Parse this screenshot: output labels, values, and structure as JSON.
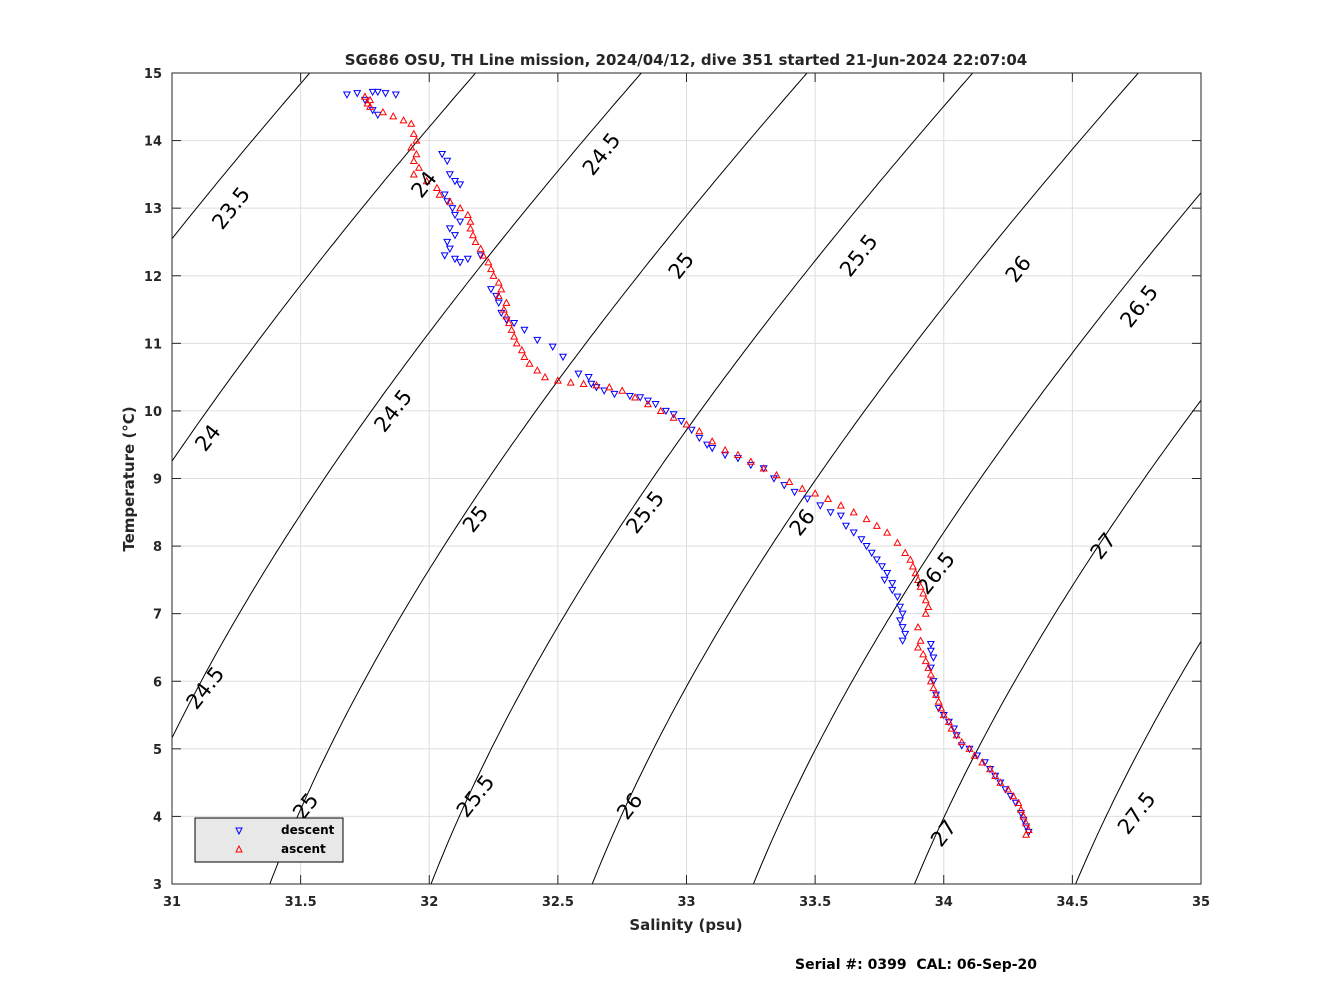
{
  "chart_data": {
    "type": "scatter",
    "title": "SG686 OSU, TH Line mission, 2024/04/12, dive 351 started 21-Jun-2024 22:07:04",
    "xlabel": "Salinity (psu)",
    "ylabel": "Temperature (°C)",
    "xlim": [
      31,
      35
    ],
    "ylim": [
      3,
      15
    ],
    "xticks": [
      31,
      31.5,
      32,
      32.5,
      33,
      33.5,
      34,
      34.5,
      35
    ],
    "xtick_labels": [
      "31",
      "31.5",
      "32",
      "32.5",
      "33",
      "33.5",
      "34",
      "34.5",
      "35"
    ],
    "yticks": [
      3,
      4,
      5,
      6,
      7,
      8,
      9,
      10,
      11,
      12,
      13,
      14,
      15
    ],
    "ytick_labels": [
      "3",
      "4",
      "5",
      "6",
      "7",
      "8",
      "9",
      "10",
      "11",
      "12",
      "13",
      "14",
      "15"
    ],
    "grid": true,
    "legend_position": "bottom-left",
    "density_contours": {
      "levels": [
        23.5,
        24,
        24.5,
        25,
        25.5,
        26,
        26.5,
        27,
        27.5
      ],
      "color": "#000000",
      "labels": [
        {
          "text": "23.5",
          "x": 31.23,
          "y": 13.0
        },
        {
          "text": "24",
          "x": 31.14,
          "y": 9.6
        },
        {
          "text": "24.5",
          "x": 31.13,
          "y": 5.9
        },
        {
          "text": "24",
          "x": 31.98,
          "y": 13.35
        },
        {
          "text": "24.5",
          "x": 31.86,
          "y": 10.0
        },
        {
          "text": "25",
          "x": 31.52,
          "y": 4.15
        },
        {
          "text": "24.5",
          "x": 32.67,
          "y": 13.8
        },
        {
          "text": "25",
          "x": 32.18,
          "y": 8.4
        },
        {
          "text": "25.5",
          "x": 32.18,
          "y": 4.3
        },
        {
          "text": "25",
          "x": 32.98,
          "y": 12.15
        },
        {
          "text": "25.5",
          "x": 32.84,
          "y": 8.5
        },
        {
          "text": "26",
          "x": 32.78,
          "y": 4.15
        },
        {
          "text": "25.5",
          "x": 33.67,
          "y": 12.3
        },
        {
          "text": "26",
          "x": 33.45,
          "y": 8.35
        },
        {
          "text": "27",
          "x": 34.0,
          "y": 3.75
        },
        {
          "text": "26",
          "x": 34.29,
          "y": 12.1
        },
        {
          "text": "26.5",
          "x": 33.97,
          "y": 7.6
        },
        {
          "text": "27.5",
          "x": 34.75,
          "y": 4.05
        },
        {
          "text": "26.5",
          "x": 34.76,
          "y": 11.55
        },
        {
          "text": "27",
          "x": 34.62,
          "y": 8.0
        }
      ]
    },
    "series": [
      {
        "name": "descent",
        "color": "#0000ff",
        "marker": "triangle-down",
        "points": [
          [
            31.68,
            14.68
          ],
          [
            31.72,
            14.7
          ],
          [
            31.78,
            14.72
          ],
          [
            31.8,
            14.72
          ],
          [
            31.83,
            14.7
          ],
          [
            31.87,
            14.68
          ],
          [
            31.75,
            14.6
          ],
          [
            31.78,
            14.45
          ],
          [
            31.8,
            14.38
          ],
          [
            32.05,
            13.8
          ],
          [
            32.07,
            13.7
          ],
          [
            32.08,
            13.5
          ],
          [
            32.1,
            13.4
          ],
          [
            32.12,
            13.35
          ],
          [
            32.06,
            13.2
          ],
          [
            32.07,
            13.1
          ],
          [
            32.09,
            13.0
          ],
          [
            32.1,
            12.9
          ],
          [
            32.12,
            12.8
          ],
          [
            32.08,
            12.7
          ],
          [
            32.1,
            12.6
          ],
          [
            32.07,
            12.5
          ],
          [
            32.08,
            12.4
          ],
          [
            32.06,
            12.3
          ],
          [
            32.1,
            12.25
          ],
          [
            32.12,
            12.2
          ],
          [
            32.15,
            12.25
          ],
          [
            32.2,
            12.3
          ],
          [
            32.24,
            11.8
          ],
          [
            32.26,
            11.7
          ],
          [
            32.27,
            11.6
          ],
          [
            32.28,
            11.45
          ],
          [
            32.3,
            11.35
          ],
          [
            32.33,
            11.3
          ],
          [
            32.37,
            11.2
          ],
          [
            32.42,
            11.05
          ],
          [
            32.48,
            10.95
          ],
          [
            32.52,
            10.8
          ],
          [
            32.58,
            10.55
          ],
          [
            32.62,
            10.5
          ],
          [
            32.63,
            10.4
          ],
          [
            32.65,
            10.35
          ],
          [
            32.68,
            10.3
          ],
          [
            32.72,
            10.25
          ],
          [
            32.78,
            10.22
          ],
          [
            32.82,
            10.2
          ],
          [
            32.85,
            10.15
          ],
          [
            32.88,
            10.1
          ],
          [
            32.92,
            10.0
          ],
          [
            32.95,
            9.95
          ],
          [
            32.98,
            9.85
          ],
          [
            33.02,
            9.72
          ],
          [
            33.05,
            9.6
          ],
          [
            33.08,
            9.5
          ],
          [
            33.1,
            9.45
          ],
          [
            33.15,
            9.35
          ],
          [
            33.2,
            9.3
          ],
          [
            33.25,
            9.2
          ],
          [
            33.3,
            9.15
          ],
          [
            33.34,
            9.0
          ],
          [
            33.38,
            8.9
          ],
          [
            33.42,
            8.8
          ],
          [
            33.47,
            8.7
          ],
          [
            33.52,
            8.6
          ],
          [
            33.56,
            8.5
          ],
          [
            33.6,
            8.45
          ],
          [
            33.62,
            8.3
          ],
          [
            33.65,
            8.2
          ],
          [
            33.68,
            8.1
          ],
          [
            33.7,
            8.0
          ],
          [
            33.72,
            7.9
          ],
          [
            33.74,
            7.8
          ],
          [
            33.76,
            7.7
          ],
          [
            33.78,
            7.6
          ],
          [
            33.77,
            7.5
          ],
          [
            33.8,
            7.45
          ],
          [
            33.8,
            7.35
          ],
          [
            33.82,
            7.25
          ],
          [
            33.83,
            7.1
          ],
          [
            33.84,
            7.0
          ],
          [
            33.83,
            6.9
          ],
          [
            33.84,
            6.8
          ],
          [
            33.85,
            6.7
          ],
          [
            33.84,
            6.6
          ],
          [
            33.95,
            6.55
          ],
          [
            33.95,
            6.45
          ],
          [
            33.96,
            6.35
          ],
          [
            33.95,
            6.2
          ],
          [
            33.96,
            6.0
          ],
          [
            33.97,
            5.8
          ],
          [
            33.98,
            5.6
          ],
          [
            34.0,
            5.5
          ],
          [
            34.02,
            5.4
          ],
          [
            34.04,
            5.3
          ],
          [
            34.05,
            5.2
          ],
          [
            34.07,
            5.05
          ],
          [
            34.1,
            5.0
          ],
          [
            34.13,
            4.9
          ],
          [
            34.16,
            4.8
          ],
          [
            34.18,
            4.7
          ],
          [
            34.2,
            4.6
          ],
          [
            34.22,
            4.5
          ],
          [
            34.24,
            4.4
          ],
          [
            34.26,
            4.3
          ],
          [
            34.28,
            4.2
          ],
          [
            34.3,
            4.05
          ],
          [
            34.31,
            3.95
          ],
          [
            34.32,
            3.85
          ],
          [
            34.33,
            3.77
          ]
        ]
      },
      {
        "name": "ascent",
        "color": "#ff0000",
        "marker": "triangle-up",
        "points": [
          [
            31.75,
            14.65
          ],
          [
            31.77,
            14.6
          ],
          [
            31.76,
            14.55
          ],
          [
            31.77,
            14.5
          ],
          [
            31.82,
            14.42
          ],
          [
            31.86,
            14.36
          ],
          [
            31.9,
            14.3
          ],
          [
            31.93,
            14.25
          ],
          [
            31.94,
            14.1
          ],
          [
            31.95,
            14.0
          ],
          [
            31.93,
            13.9
          ],
          [
            31.95,
            13.8
          ],
          [
            31.94,
            13.7
          ],
          [
            31.96,
            13.6
          ],
          [
            31.94,
            13.5
          ],
          [
            31.99,
            13.4
          ],
          [
            32.03,
            13.3
          ],
          [
            32.04,
            13.2
          ],
          [
            32.08,
            13.1
          ],
          [
            32.12,
            13.0
          ],
          [
            32.15,
            12.9
          ],
          [
            32.16,
            12.8
          ],
          [
            32.16,
            12.7
          ],
          [
            32.17,
            12.6
          ],
          [
            32.18,
            12.5
          ],
          [
            32.2,
            12.4
          ],
          [
            32.21,
            12.3
          ],
          [
            32.23,
            12.2
          ],
          [
            32.24,
            12.1
          ],
          [
            32.25,
            12.0
          ],
          [
            32.27,
            11.9
          ],
          [
            32.28,
            11.8
          ],
          [
            32.27,
            11.7
          ],
          [
            32.3,
            11.6
          ],
          [
            32.29,
            11.5
          ],
          [
            32.3,
            11.4
          ],
          [
            32.31,
            11.3
          ],
          [
            32.32,
            11.2
          ],
          [
            32.33,
            11.1
          ],
          [
            32.34,
            11.0
          ],
          [
            32.36,
            10.9
          ],
          [
            32.37,
            10.8
          ],
          [
            32.39,
            10.7
          ],
          [
            32.42,
            10.6
          ],
          [
            32.45,
            10.5
          ],
          [
            32.5,
            10.45
          ],
          [
            32.55,
            10.42
          ],
          [
            32.6,
            10.4
          ],
          [
            32.65,
            10.38
          ],
          [
            32.7,
            10.35
          ],
          [
            32.75,
            10.3
          ],
          [
            32.8,
            10.2
          ],
          [
            32.85,
            10.1
          ],
          [
            32.9,
            10.0
          ],
          [
            32.95,
            9.9
          ],
          [
            33.0,
            9.8
          ],
          [
            33.05,
            9.7
          ],
          [
            33.1,
            9.55
          ],
          [
            33.15,
            9.42
          ],
          [
            33.2,
            9.35
          ],
          [
            33.25,
            9.25
          ],
          [
            33.3,
            9.15
          ],
          [
            33.35,
            9.05
          ],
          [
            33.4,
            8.95
          ],
          [
            33.45,
            8.85
          ],
          [
            33.5,
            8.78
          ],
          [
            33.55,
            8.7
          ],
          [
            33.6,
            8.6
          ],
          [
            33.65,
            8.5
          ],
          [
            33.7,
            8.4
          ],
          [
            33.74,
            8.3
          ],
          [
            33.78,
            8.2
          ],
          [
            33.82,
            8.05
          ],
          [
            33.85,
            7.9
          ],
          [
            33.87,
            7.8
          ],
          [
            33.88,
            7.7
          ],
          [
            33.89,
            7.6
          ],
          [
            33.9,
            7.5
          ],
          [
            33.91,
            7.4
          ],
          [
            33.92,
            7.3
          ],
          [
            33.93,
            7.2
          ],
          [
            33.94,
            7.1
          ],
          [
            33.93,
            7.0
          ],
          [
            33.9,
            6.8
          ],
          [
            33.91,
            6.6
          ],
          [
            33.9,
            6.5
          ],
          [
            33.92,
            6.4
          ],
          [
            33.93,
            6.3
          ],
          [
            33.94,
            6.2
          ],
          [
            33.95,
            6.1
          ],
          [
            33.95,
            6.0
          ],
          [
            33.96,
            5.9
          ],
          [
            33.97,
            5.8
          ],
          [
            33.98,
            5.7
          ],
          [
            33.99,
            5.6
          ],
          [
            34.0,
            5.5
          ],
          [
            34.02,
            5.4
          ],
          [
            34.03,
            5.3
          ],
          [
            34.05,
            5.2
          ],
          [
            34.07,
            5.1
          ],
          [
            34.1,
            5.0
          ],
          [
            34.12,
            4.9
          ],
          [
            34.15,
            4.8
          ],
          [
            34.18,
            4.7
          ],
          [
            34.2,
            4.6
          ],
          [
            34.22,
            4.5
          ],
          [
            34.25,
            4.4
          ],
          [
            34.27,
            4.3
          ],
          [
            34.29,
            4.2
          ],
          [
            34.3,
            4.1
          ],
          [
            34.31,
            4.0
          ],
          [
            34.32,
            3.9
          ],
          [
            34.33,
            3.8
          ],
          [
            34.32,
            3.73
          ]
        ]
      }
    ]
  },
  "footer": {
    "text": "Serial #: 0399  CAL: 06-Sep-20"
  }
}
